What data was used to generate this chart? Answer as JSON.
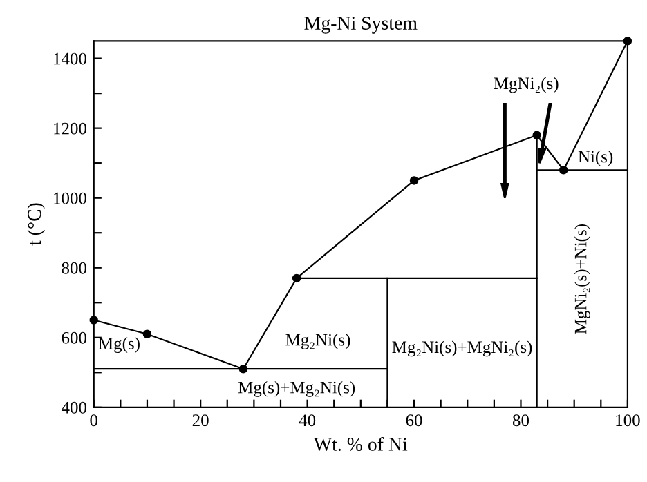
{
  "chart_data": {
    "type": "line",
    "title": "Mg-Ni System",
    "xlabel": "Wt. % of Ni",
    "ylabel": "t (°C)",
    "xlim": [
      0,
      100
    ],
    "ylim": [
      400,
      1450
    ],
    "xticks": [
      0,
      {
        "value": 5,
        "label": null
      },
      {
        "value": 10,
        "label": null
      },
      {
        "value": 15,
        "label": null
      },
      20,
      {
        "value": 25,
        "label": null
      },
      {
        "value": 30,
        "label": null
      },
      {
        "value": 35,
        "label": null
      },
      40,
      {
        "value": 45,
        "label": null
      },
      {
        "value": 50,
        "label": null
      },
      {
        "value": 55,
        "label": null
      },
      60,
      {
        "value": 65,
        "label": null
      },
      {
        "value": 70,
        "label": null
      },
      {
        "value": 75,
        "label": null
      },
      80,
      {
        "value": 85,
        "label": null
      },
      {
        "value": 90,
        "label": null
      },
      {
        "value": 95,
        "label": null
      },
      100
    ],
    "yticks": [
      400,
      {
        "value": 500,
        "label": null
      },
      600,
      {
        "value": 700,
        "label": null
      },
      800,
      {
        "value": 900,
        "label": null
      },
      1000,
      {
        "value": 1100,
        "label": null
      },
      1200,
      {
        "value": 1300,
        "label": null
      },
      1400
    ],
    "grid": false,
    "legend": false,
    "color": "#000000",
    "series": [
      {
        "x": [
          0,
          10,
          28,
          38,
          60,
          83,
          88,
          100
        ],
        "values": [
          650,
          610,
          510,
          770,
          1050,
          1180,
          1080,
          1450
        ],
        "marker": "circle"
      },
      {
        "x": [
          0,
          55
        ],
        "values": [
          510,
          510
        ],
        "marker": "none"
      },
      {
        "x": [
          38,
          55,
          55
        ],
        "values": [
          770,
          770,
          400
        ],
        "marker": "none"
      },
      {
        "x": [
          55,
          83
        ],
        "values": [
          770,
          770
        ],
        "marker": "none"
      },
      {
        "x": [
          83,
          100
        ],
        "values": [
          1080,
          1080
        ],
        "marker": "none"
      },
      {
        "x": [
          83,
          83
        ],
        "values": [
          400,
          1180
        ],
        "marker": "none"
      }
    ],
    "annotations": [
      "Mg(s)",
      "Mg(s)+Mg₂Ni(s)",
      "Mg₂Ni(s)",
      "Mg₂Ni(s)+MgNi₂(s)",
      "MgNi₂(s)+Ni(s)",
      "Ni(s)",
      "MgNi₂(s)"
    ]
  }
}
